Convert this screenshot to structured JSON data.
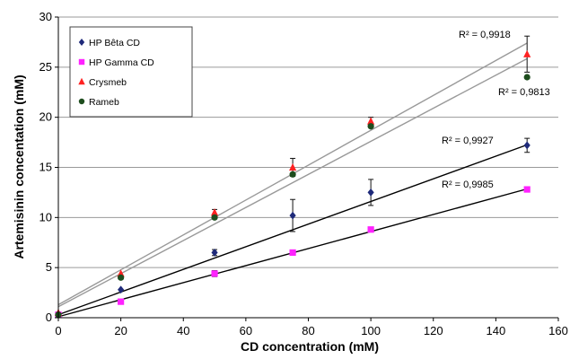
{
  "chart_data": {
    "type": "scatter",
    "xlabel": "CD concentration (mM)",
    "ylabel": "Artemisinin concentation (mM)",
    "xlim": [
      0,
      160
    ],
    "ylim": [
      0,
      30
    ],
    "xticks": [
      "0",
      "20",
      "40",
      "60",
      "80",
      "100",
      "120",
      "140",
      "160"
    ],
    "yticks": [
      "0",
      "5",
      "10",
      "15",
      "20",
      "25",
      "30"
    ],
    "grid": "horizontal",
    "legend_position": "top-left",
    "series": [
      {
        "name": "HP Bêta CD",
        "marker": "diamond",
        "color": "#1f2a7a",
        "x": [
          0,
          20,
          50,
          75,
          100,
          150
        ],
        "y": [
          0.3,
          2.8,
          6.5,
          10.2,
          12.5,
          17.2
        ],
        "error": [
          0,
          0,
          0.3,
          1.6,
          1.3,
          0.7
        ],
        "fit": [
          0.3,
          0.113
        ],
        "fit_color": "#000000",
        "r2_label": "R² = 0,9927"
      },
      {
        "name": "HP Gamma CD",
        "marker": "square",
        "color": "#ff22ff",
        "x": [
          0,
          20,
          50,
          75,
          100,
          150
        ],
        "y": [
          0.3,
          1.6,
          4.4,
          6.5,
          8.8,
          12.8
        ],
        "error": [
          0,
          0,
          0.3,
          0,
          0,
          0
        ],
        "fit": [
          0.1,
          0.085
        ],
        "fit_color": "#000000",
        "r2_label": "R² = 0,9985"
      },
      {
        "name": "Crysmeb",
        "marker": "triangle",
        "color": "#ff2222",
        "x": [
          0,
          20,
          50,
          75,
          100,
          150
        ],
        "y": [
          0.5,
          4.4,
          10.5,
          15.0,
          19.6,
          26.3
        ],
        "error": [
          0,
          0,
          0.3,
          0.9,
          0.4,
          1.8
        ],
        "fit": [
          1.3,
          0.174
        ],
        "fit_color": "#999999",
        "r2_label": "R² = 0,9918"
      },
      {
        "name": "Rameb",
        "marker": "circle",
        "color": "#1e4d1e",
        "x": [
          0,
          20,
          50,
          75,
          100,
          150
        ],
        "y": [
          0.3,
          4.0,
          10.0,
          14.3,
          19.1,
          24.0
        ],
        "error": [
          0,
          0,
          0,
          0,
          0,
          0
        ],
        "fit": [
          1.1,
          0.165
        ],
        "fit_color": "#999999",
        "r2_label": "R² = 0,9813"
      }
    ]
  }
}
